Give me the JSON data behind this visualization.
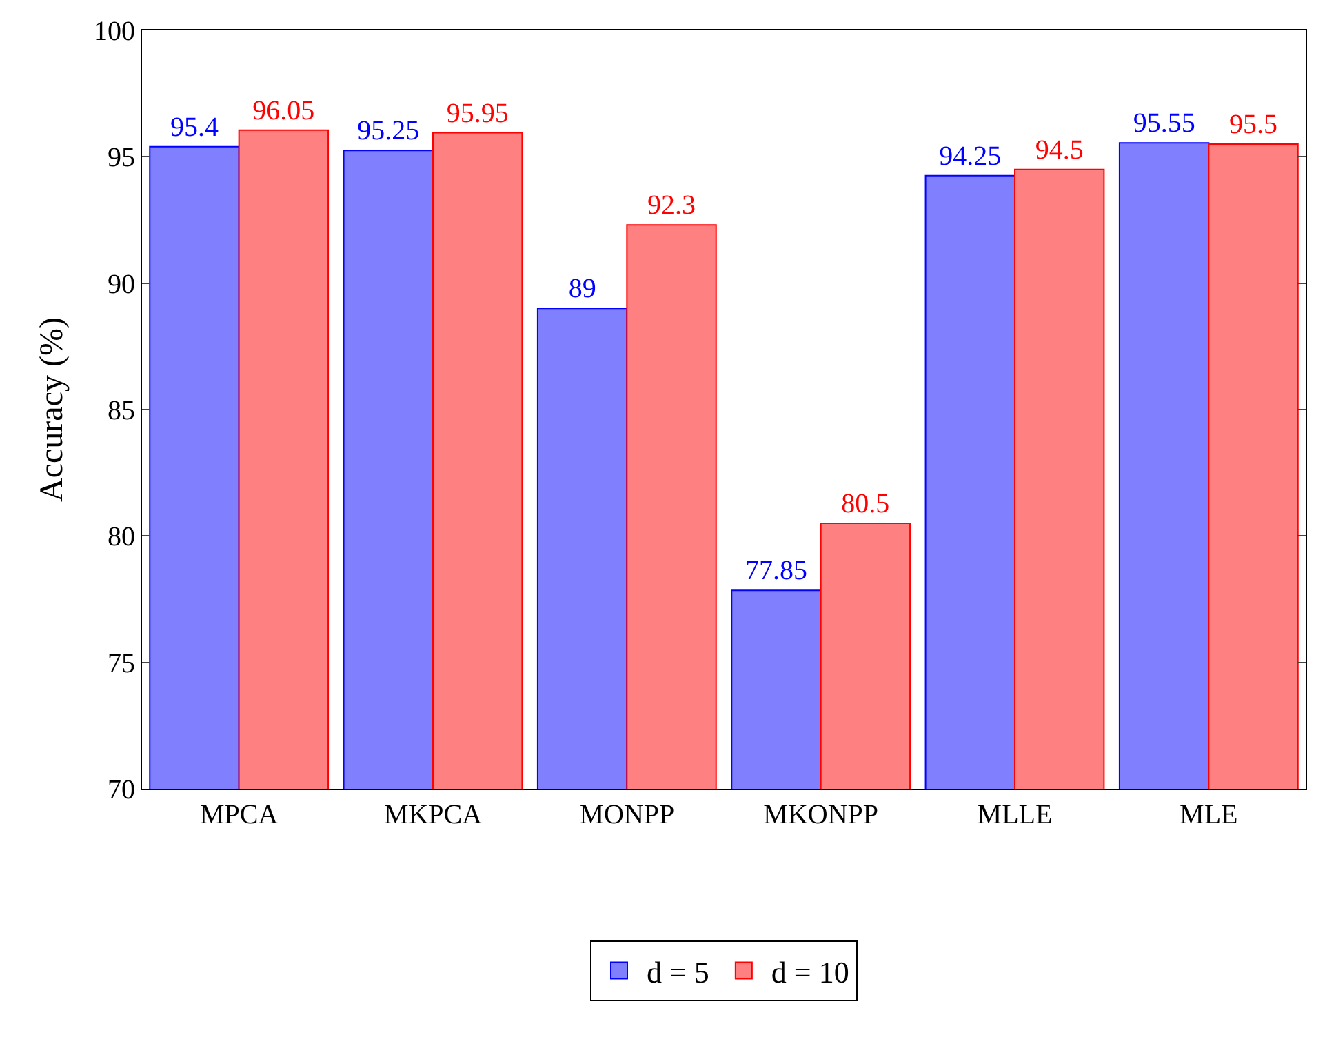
{
  "chart_data": {
    "type": "bar",
    "ylabel": "Accuracy (%)",
    "categories": [
      "MPCA",
      "MKPCA",
      "MONPP",
      "MKONPP",
      "MLLE",
      "MLE"
    ],
    "series": [
      {
        "name": "d = 5",
        "color": "#8080ff",
        "values": [
          95.4,
          95.25,
          89,
          77.85,
          94.25,
          95.55
        ]
      },
      {
        "name": "d = 10",
        "color": "#ff8080",
        "values": [
          96.05,
          95.95,
          92.3,
          80.5,
          94.5,
          95.5
        ]
      }
    ],
    "ylim": [
      70,
      100
    ],
    "yticks": [
      70,
      75,
      80,
      85,
      90,
      95,
      100
    ],
    "data_labels": true,
    "legend": "bottom"
  }
}
